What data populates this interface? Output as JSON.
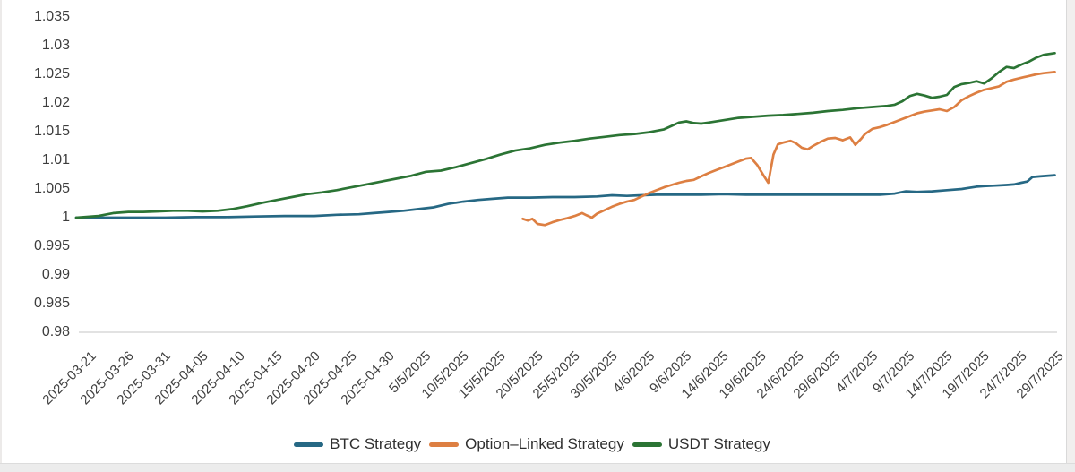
{
  "chart_data": {
    "type": "line",
    "title": "",
    "grid": false,
    "legend_position": "bottom-center",
    "axis_line_color": "#d8d8d8",
    "x_axis": {
      "tick_labels": [
        "2025-03-21",
        "2025-03-26",
        "2025-03-31",
        "2025-04-05",
        "2025-04-10",
        "2025-04-15",
        "2025-04-20",
        "2025-04-25",
        "2025-04-30",
        "5/5/2025",
        "10/5/2025",
        "15/5/2025",
        "20/5/2025",
        "25/5/2025",
        "30/5/2025",
        "4/6/2025",
        "9/6/2025",
        "14/6/2025",
        "19/6/2025",
        "24/6/2025",
        "29/6/2025",
        "4/7/2025",
        "9/7/2025",
        "14/7/2025",
        "19/7/2025",
        "24/7/2025",
        "29/7/2025"
      ],
      "tick_days": [
        0,
        5,
        10,
        15,
        20,
        25,
        30,
        35,
        40,
        45,
        50,
        55,
        60,
        65,
        70,
        75,
        80,
        85,
        90,
        95,
        100,
        105,
        110,
        115,
        120,
        125,
        130
      ],
      "label_rotation_deg": -45
    },
    "y_axis": {
      "tick_labels": [
        "1.035",
        "1.03",
        "1.025",
        "1.02",
        "1.015",
        "1.01",
        "1.005",
        "1",
        "0.995",
        "0.99",
        "0.985",
        "0.98"
      ],
      "tick_values": [
        1.035,
        1.03,
        1.025,
        1.02,
        1.015,
        1.01,
        1.005,
        1.0,
        0.995,
        0.99,
        0.985,
        0.98
      ],
      "min": 0.98,
      "max": 1.035
    },
    "series": [
      {
        "name": "BTC Strategy",
        "color": "#266884",
        "points": [
          [
            0,
            1.0
          ],
          [
            4,
            1.0
          ],
          [
            8,
            1.0
          ],
          [
            12,
            1.0
          ],
          [
            16,
            1.0001
          ],
          [
            20,
            1.0001
          ],
          [
            24,
            1.0002
          ],
          [
            28,
            1.0003
          ],
          [
            32,
            1.0003
          ],
          [
            35,
            1.0005
          ],
          [
            38,
            1.0006
          ],
          [
            40,
            1.0008
          ],
          [
            42,
            1.001
          ],
          [
            44,
            1.0012
          ],
          [
            46,
            1.0015
          ],
          [
            48,
            1.0018
          ],
          [
            50,
            1.0024
          ],
          [
            52,
            1.0028
          ],
          [
            54,
            1.0031
          ],
          [
            56,
            1.0033
          ],
          [
            58,
            1.0035
          ],
          [
            61,
            1.0035
          ],
          [
            64,
            1.0036
          ],
          [
            67,
            1.0036
          ],
          [
            70,
            1.0037
          ],
          [
            72,
            1.0039
          ],
          [
            74,
            1.0038
          ],
          [
            76,
            1.0039
          ],
          [
            78,
            1.004
          ],
          [
            81,
            1.004
          ],
          [
            84,
            1.004
          ],
          [
            87,
            1.0041
          ],
          [
            90,
            1.004
          ],
          [
            93,
            1.004
          ],
          [
            96,
            1.004
          ],
          [
            99,
            1.004
          ],
          [
            102,
            1.004
          ],
          [
            105,
            1.004
          ],
          [
            108,
            1.004
          ],
          [
            110,
            1.0042
          ],
          [
            111.5,
            1.0046
          ],
          [
            113,
            1.0045
          ],
          [
            115,
            1.0046
          ],
          [
            117,
            1.0048
          ],
          [
            119,
            1.005
          ],
          [
            120,
            1.0052
          ],
          [
            121,
            1.0054
          ],
          [
            122,
            1.0055
          ],
          [
            123.5,
            1.0056
          ],
          [
            125,
            1.0057
          ],
          [
            126,
            1.0058
          ],
          [
            127,
            1.0061
          ],
          [
            127.8,
            1.0063
          ],
          [
            128.5,
            1.0071
          ],
          [
            129.5,
            1.0072
          ],
          [
            131.5,
            1.0074
          ]
        ]
      },
      {
        "name": "Option–Linked Strategy",
        "color": "#dd7f42",
        "points": [
          [
            60,
            0.9998
          ],
          [
            60.7,
            0.9995
          ],
          [
            61.3,
            0.9998
          ],
          [
            62,
            0.9989
          ],
          [
            63,
            0.9987
          ],
          [
            64,
            0.9992
          ],
          [
            65,
            0.9996
          ],
          [
            66,
            0.9999
          ],
          [
            67,
            1.0003
          ],
          [
            68,
            1.0008
          ],
          [
            68.6,
            1.0004
          ],
          [
            69.3,
            1.0
          ],
          [
            70,
            1.0007
          ],
          [
            71,
            1.0013
          ],
          [
            72,
            1.0019
          ],
          [
            73,
            1.0024
          ],
          [
            74,
            1.0028
          ],
          [
            75,
            1.0031
          ],
          [
            76,
            1.0037
          ],
          [
            77,
            1.0043
          ],
          [
            78,
            1.0048
          ],
          [
            79,
            1.0053
          ],
          [
            80,
            1.0057
          ],
          [
            81,
            1.0061
          ],
          [
            82,
            1.0064
          ],
          [
            83,
            1.0066
          ],
          [
            84,
            1.0072
          ],
          [
            85,
            1.0078
          ],
          [
            86,
            1.0083
          ],
          [
            87,
            1.0088
          ],
          [
            88,
            1.0093
          ],
          [
            89,
            1.0098
          ],
          [
            90,
            1.0103
          ],
          [
            90.7,
            1.0104
          ],
          [
            91.5,
            1.0092
          ],
          [
            92.3,
            1.0075
          ],
          [
            93,
            1.0061
          ],
          [
            93.7,
            1.011
          ],
          [
            94.3,
            1.0128
          ],
          [
            95,
            1.0131
          ],
          [
            96,
            1.0134
          ],
          [
            96.7,
            1.013
          ],
          [
            97.5,
            1.0122
          ],
          [
            98.3,
            1.0119
          ],
          [
            99,
            1.0125
          ],
          [
            100,
            1.0132
          ],
          [
            101,
            1.0138
          ],
          [
            102,
            1.0139
          ],
          [
            103,
            1.0135
          ],
          [
            104,
            1.014
          ],
          [
            104.7,
            1.0127
          ],
          [
            105.5,
            1.0138
          ],
          [
            106,
            1.0146
          ],
          [
            107,
            1.0155
          ],
          [
            108,
            1.0158
          ],
          [
            109,
            1.0162
          ],
          [
            110,
            1.0167
          ],
          [
            111,
            1.0172
          ],
          [
            112,
            1.0177
          ],
          [
            113,
            1.0182
          ],
          [
            114,
            1.0185
          ],
          [
            115,
            1.0187
          ],
          [
            116,
            1.0189
          ],
          [
            117,
            1.0186
          ],
          [
            118,
            1.0193
          ],
          [
            119,
            1.0205
          ],
          [
            120,
            1.0212
          ],
          [
            121,
            1.0218
          ],
          [
            122,
            1.0223
          ],
          [
            123,
            1.0226
          ],
          [
            124,
            1.0229
          ],
          [
            125,
            1.0237
          ],
          [
            126,
            1.0241
          ],
          [
            127,
            1.0244
          ],
          [
            128,
            1.0247
          ],
          [
            129,
            1.025
          ],
          [
            130,
            1.0252
          ],
          [
            131.5,
            1.0254
          ]
        ]
      },
      {
        "name": "USDT Strategy",
        "color": "#2b7434",
        "points": [
          [
            0,
            1.0
          ],
          [
            1,
            1.0001
          ],
          [
            3,
            1.0003
          ],
          [
            5,
            1.0008
          ],
          [
            7,
            1.001
          ],
          [
            9,
            1.001
          ],
          [
            11,
            1.0011
          ],
          [
            13,
            1.0012
          ],
          [
            15,
            1.0012
          ],
          [
            17,
            1.0011
          ],
          [
            19,
            1.0012
          ],
          [
            21,
            1.0015
          ],
          [
            23,
            1.002
          ],
          [
            25,
            1.0026
          ],
          [
            27,
            1.0031
          ],
          [
            29,
            1.0036
          ],
          [
            31,
            1.0041
          ],
          [
            33,
            1.0044
          ],
          [
            35,
            1.0048
          ],
          [
            37,
            1.0053
          ],
          [
            39,
            1.0058
          ],
          [
            41,
            1.0063
          ],
          [
            43,
            1.0068
          ],
          [
            45,
            1.0073
          ],
          [
            47,
            1.008
          ],
          [
            49,
            1.0082
          ],
          [
            51,
            1.0088
          ],
          [
            53,
            1.0095
          ],
          [
            55,
            1.0102
          ],
          [
            57,
            1.011
          ],
          [
            59,
            1.0117
          ],
          [
            61,
            1.0121
          ],
          [
            63,
            1.0127
          ],
          [
            65,
            1.0131
          ],
          [
            67,
            1.0134
          ],
          [
            69,
            1.0138
          ],
          [
            71,
            1.0141
          ],
          [
            73,
            1.0144
          ],
          [
            75,
            1.0146
          ],
          [
            77,
            1.0149
          ],
          [
            79,
            1.0154
          ],
          [
            80,
            1.016
          ],
          [
            81,
            1.0166
          ],
          [
            82,
            1.0168
          ],
          [
            83,
            1.0165
          ],
          [
            84,
            1.0164
          ],
          [
            85,
            1.0166
          ],
          [
            87,
            1.017
          ],
          [
            89,
            1.0174
          ],
          [
            91,
            1.0176
          ],
          [
            93,
            1.0178
          ],
          [
            95,
            1.0179
          ],
          [
            97,
            1.0181
          ],
          [
            99,
            1.0183
          ],
          [
            101,
            1.0186
          ],
          [
            103,
            1.0188
          ],
          [
            105,
            1.0191
          ],
          [
            107,
            1.0193
          ],
          [
            109,
            1.0195
          ],
          [
            110,
            1.0197
          ],
          [
            111,
            1.0203
          ],
          [
            112,
            1.0212
          ],
          [
            113,
            1.0216
          ],
          [
            114,
            1.0213
          ],
          [
            115,
            1.0209
          ],
          [
            116,
            1.0211
          ],
          [
            117,
            1.0214
          ],
          [
            118,
            1.0228
          ],
          [
            119,
            1.0233
          ],
          [
            120,
            1.0235
          ],
          [
            121,
            1.0238
          ],
          [
            122,
            1.0234
          ],
          [
            123,
            1.0243
          ],
          [
            124,
            1.0254
          ],
          [
            125,
            1.0263
          ],
          [
            126,
            1.0261
          ],
          [
            127,
            1.0267
          ],
          [
            128,
            1.0272
          ],
          [
            129,
            1.0279
          ],
          [
            130,
            1.0284
          ],
          [
            131.5,
            1.0287
          ]
        ]
      }
    ]
  }
}
